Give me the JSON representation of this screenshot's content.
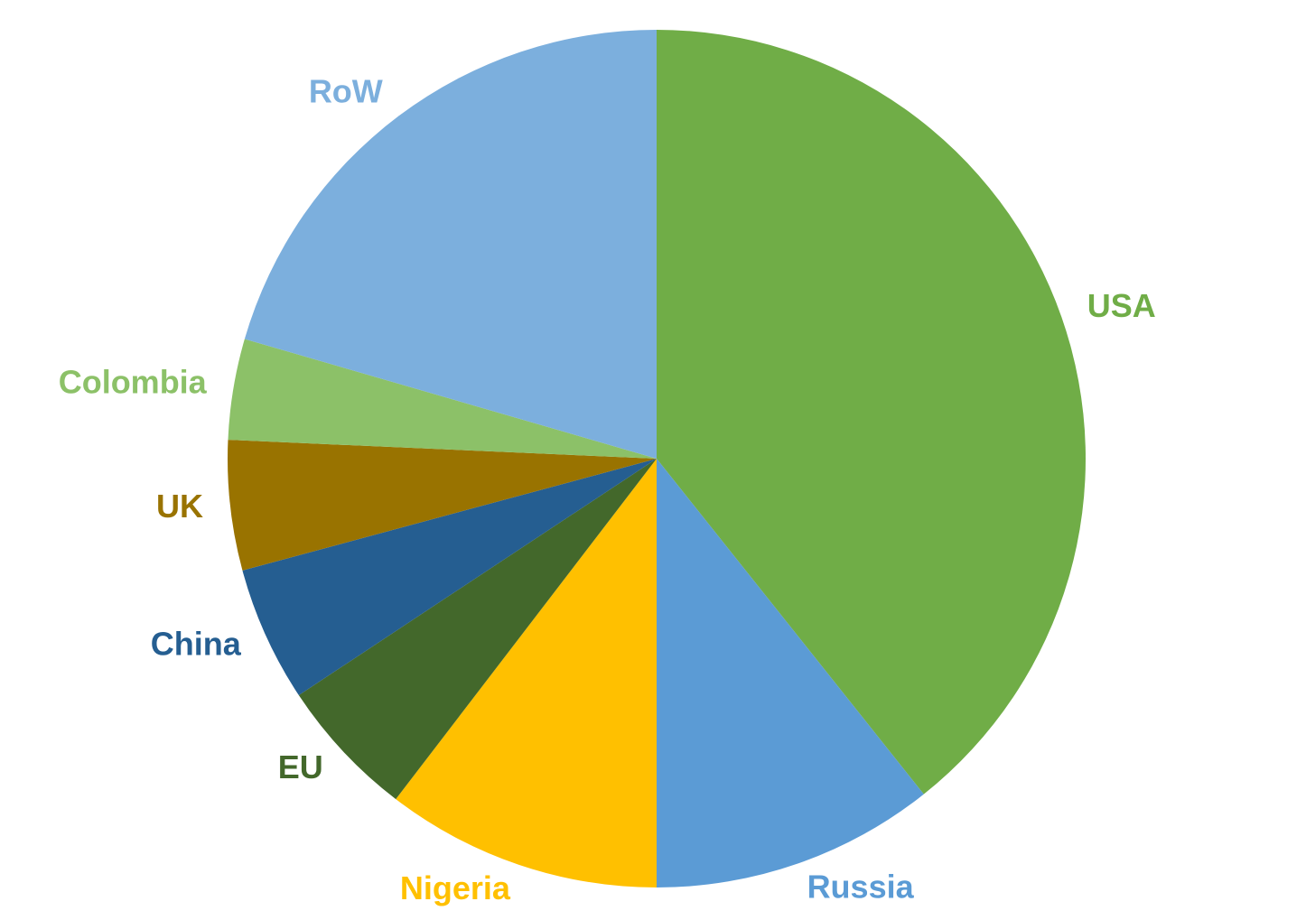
{
  "chart_data": {
    "type": "pie",
    "categories": [
      "USA",
      "Russia",
      "Nigeria",
      "EU",
      "China",
      "UK",
      "Colombia",
      "RoW"
    ],
    "values": [
      39.3,
      10.7,
      10.4,
      5.3,
      5.1,
      4.9,
      3.8,
      20.5
    ],
    "colors": [
      "#70ad47",
      "#5b9bd5",
      "#ffc000",
      "#43682b",
      "#255e91",
      "#997300",
      "#8cc168",
      "#7cafdd"
    ]
  }
}
